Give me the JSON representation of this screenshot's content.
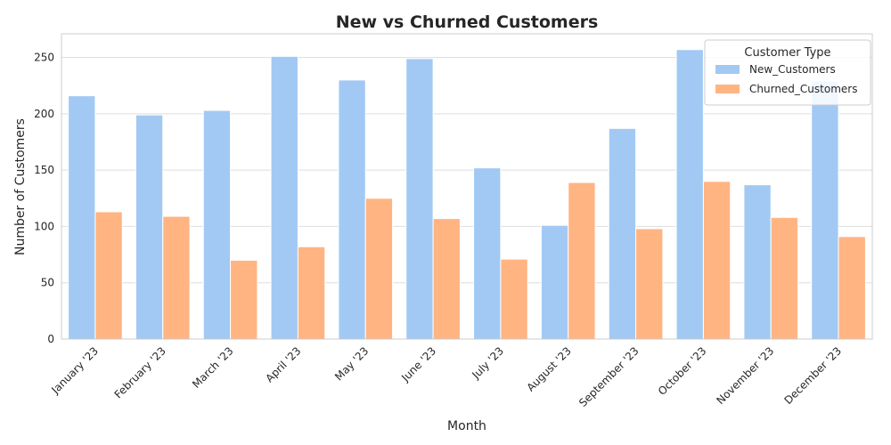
{
  "chart_data": {
    "type": "bar",
    "title": "New vs Churned Customers",
    "xlabel": "Month",
    "ylabel": "Number of Customers",
    "categories": [
      "January '23",
      "February '23",
      "March '23",
      "April '23",
      "May '23",
      "June '23",
      "July '23",
      "August '23",
      "September '23",
      "October '23",
      "November '23",
      "December '23"
    ],
    "series": [
      {
        "name": "New_Customers",
        "color": "#a1c9f4",
        "values": [
          216,
          199,
          203,
          251,
          230,
          249,
          152,
          101,
          187,
          257,
          137,
          229
        ]
      },
      {
        "name": "Churned_Customers",
        "color": "#ffb482",
        "values": [
          113,
          109,
          70,
          82,
          125,
          107,
          71,
          139,
          98,
          140,
          108,
          91
        ]
      }
    ],
    "ylim": [
      0,
      271
    ],
    "yticks": [
      0,
      50,
      100,
      150,
      200,
      250
    ],
    "grid": true,
    "legend": {
      "title": "Customer Type",
      "placement": "top-right"
    }
  }
}
